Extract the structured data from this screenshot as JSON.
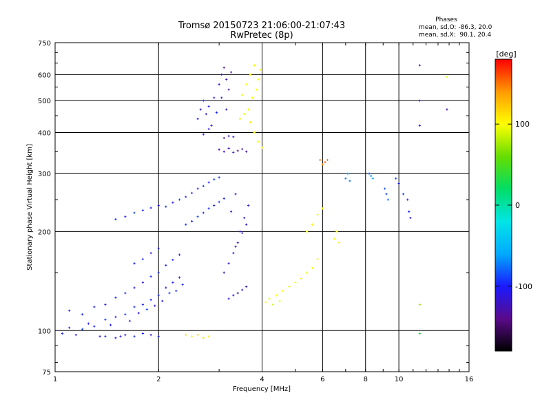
{
  "title": {
    "line1": "Tromsø 20150723 21:06:00-21:07:43",
    "line2": "RwPretec (8p)"
  },
  "phase_box": {
    "heading": "Phases",
    "line_o": "mean, sd,O: -86.3, 20.0",
    "line_x": "mean, sd,X:  90.1, 20.4"
  },
  "colorbar": {
    "label": "[deg]",
    "ticks": [
      {
        "value": 100,
        "label": "100"
      },
      {
        "value": 0,
        "label": "0"
      },
      {
        "value": -100,
        "label": "-100"
      }
    ],
    "range": [
      -180,
      180
    ],
    "colors": [
      "#000000",
      "#5a0a8a",
      "#1a1aff",
      "#00aaff",
      "#00e5e5",
      "#00dd66",
      "#66dd00",
      "#ffff00",
      "#ff9900",
      "#ff0000"
    ]
  },
  "chart_data": {
    "type": "scatter",
    "title": "Tromsø 20150723 21:06:00-21:07:43",
    "subtitle": "RwPretec (8p)",
    "xlabel": "Frequency [MHz]",
    "ylabel": "Stationary phase Virtual Height [km]",
    "x_scale": "log",
    "y_scale": "log",
    "xlim": [
      1,
      16
    ],
    "ylim": [
      75,
      750
    ],
    "grid": true,
    "x_ticks": [
      {
        "value": 1,
        "label": "1"
      },
      {
        "value": 2,
        "label": "2"
      },
      {
        "value": 4,
        "label": "4"
      },
      {
        "value": 6,
        "label": "6"
      },
      {
        "value": 8,
        "label": "8"
      },
      {
        "value": 10,
        "label": "10"
      },
      {
        "value": 16,
        "label": "16"
      }
    ],
    "y_ticks": [
      {
        "value": 75,
        "label": "75"
      },
      {
        "value": 100,
        "label": "100"
      },
      {
        "value": 200,
        "label": "200"
      },
      {
        "value": 300,
        "label": "300"
      },
      {
        "value": 400,
        "label": "400"
      },
      {
        "value": 500,
        "label": "500"
      },
      {
        "value": 600,
        "label": "600"
      },
      {
        "value": 750,
        "label": "750"
      }
    ],
    "color_variable": "phase [deg]",
    "series": [
      {
        "points": [
          [
            1.0,
            100,
            -100
          ],
          [
            1.05,
            98,
            -95
          ],
          [
            1.1,
            102,
            -110
          ],
          [
            1.15,
            97,
            -100
          ],
          [
            1.2,
            101,
            -90
          ],
          [
            1.25,
            105,
            -105
          ],
          [
            1.3,
            103,
            -100
          ],
          [
            1.35,
            96,
            -115
          ],
          [
            1.4,
            108,
            -95
          ],
          [
            1.45,
            104,
            -100
          ],
          [
            1.5,
            110,
            -105
          ],
          [
            1.55,
            96,
            -110
          ],
          [
            1.6,
            112,
            -90
          ],
          [
            1.65,
            107,
            -100
          ],
          [
            1.7,
            118,
            -95
          ],
          [
            1.75,
            113,
            -110
          ],
          [
            1.8,
            120,
            -100
          ],
          [
            1.85,
            116,
            -85
          ],
          [
            1.9,
            124,
            -100
          ],
          [
            1.95,
            119,
            -105
          ],
          [
            2.0,
            128,
            -95
          ],
          [
            2.05,
            123,
            -100
          ],
          [
            2.1,
            135,
            -110
          ],
          [
            2.15,
            130,
            -90
          ],
          [
            2.2,
            140,
            -100
          ],
          [
            2.25,
            132,
            -95
          ],
          [
            2.3,
            145,
            -105
          ],
          [
            2.35,
            138,
            -100
          ],
          [
            1.1,
            115,
            -100
          ],
          [
            1.2,
            112,
            -95
          ],
          [
            1.3,
            118,
            -100
          ],
          [
            1.4,
            120,
            -105
          ],
          [
            1.5,
            126,
            -100
          ],
          [
            1.6,
            130,
            -95
          ],
          [
            1.7,
            135,
            -100
          ],
          [
            1.8,
            140,
            -110
          ],
          [
            1.9,
            146,
            -100
          ],
          [
            2.0,
            150,
            -95
          ],
          [
            2.1,
            158,
            -100
          ],
          [
            2.2,
            164,
            -105
          ],
          [
            2.3,
            170,
            -100
          ],
          [
            1.7,
            160,
            -100
          ],
          [
            1.8,
            165,
            -95
          ],
          [
            1.9,
            172,
            -110
          ],
          [
            2.0,
            178,
            -100
          ],
          [
            1.4,
            96,
            -100
          ],
          [
            1.5,
            95,
            -105
          ],
          [
            1.6,
            97,
            -100
          ],
          [
            1.7,
            96,
            -95
          ],
          [
            1.8,
            98,
            -100
          ],
          [
            1.9,
            97,
            -110
          ],
          [
            2.0,
            96,
            -100
          ]
        ]
      },
      {
        "points": [
          [
            1.5,
            218,
            -95
          ],
          [
            1.6,
            222,
            -100
          ],
          [
            1.7,
            228,
            -90
          ],
          [
            1.8,
            232,
            -95
          ],
          [
            1.9,
            236,
            -100
          ],
          [
            2.0,
            240,
            -105
          ],
          [
            2.1,
            238,
            -95
          ],
          [
            2.2,
            245,
            -100
          ],
          [
            2.3,
            250,
            -90
          ],
          [
            2.4,
            255,
            -95
          ],
          [
            2.5,
            262,
            -100
          ],
          [
            2.6,
            270,
            -105
          ],
          [
            2.7,
            275,
            -95
          ],
          [
            2.8,
            282,
            -100
          ],
          [
            2.9,
            288,
            -90
          ],
          [
            3.0,
            292,
            -95
          ],
          [
            2.4,
            210,
            -95
          ],
          [
            2.5,
            215,
            -100
          ],
          [
            2.6,
            222,
            -90
          ],
          [
            2.7,
            228,
            -95
          ],
          [
            2.8,
            235,
            -100
          ],
          [
            2.9,
            240,
            -105
          ],
          [
            3.0,
            246,
            -95
          ],
          [
            3.1,
            252,
            -100
          ]
        ]
      },
      {
        "points": [
          [
            2.6,
            440,
            -100
          ],
          [
            2.65,
            470,
            -110
          ],
          [
            2.7,
            500,
            -95
          ],
          [
            2.75,
            455,
            -105
          ],
          [
            2.8,
            480,
            -100
          ],
          [
            2.85,
            420,
            -110
          ],
          [
            2.9,
            510,
            -100
          ],
          [
            2.95,
            460,
            -95
          ],
          [
            2.7,
            395,
            -100
          ],
          [
            2.8,
            410,
            -105
          ],
          [
            3.0,
            560,
            -120
          ],
          [
            3.05,
            600,
            -125
          ],
          [
            3.1,
            630,
            -130
          ],
          [
            3.15,
            580,
            -120
          ],
          [
            3.2,
            540,
            -125
          ],
          [
            3.25,
            610,
            -130
          ],
          [
            3.05,
            510,
            -120
          ],
          [
            3.15,
            470,
            -115
          ],
          [
            3.0,
            355,
            -130
          ],
          [
            3.1,
            350,
            -125
          ],
          [
            3.2,
            358,
            -120
          ],
          [
            3.3,
            348,
            -125
          ],
          [
            3.4,
            352,
            -130
          ],
          [
            3.5,
            356,
            -120
          ],
          [
            3.6,
            350,
            -125
          ],
          [
            3.1,
            385,
            -130
          ],
          [
            3.2,
            390,
            -125
          ],
          [
            3.3,
            388,
            -120
          ]
        ]
      },
      {
        "points": [
          [
            3.2,
            125,
            -110
          ],
          [
            3.3,
            128,
            -115
          ],
          [
            3.4,
            130,
            -120
          ],
          [
            3.5,
            133,
            -110
          ],
          [
            3.6,
            136,
            -115
          ],
          [
            3.1,
            150,
            -120
          ],
          [
            3.2,
            160,
            -115
          ],
          [
            3.3,
            172,
            -110
          ],
          [
            3.4,
            185,
            -120
          ],
          [
            3.5,
            198,
            -115
          ],
          [
            3.6,
            210,
            -110
          ],
          [
            3.35,
            180,
            -125
          ],
          [
            3.45,
            200,
            -120
          ],
          [
            3.55,
            220,
            -115
          ],
          [
            3.65,
            240,
            -110
          ],
          [
            3.25,
            230,
            -125
          ],
          [
            3.35,
            260,
            -120
          ]
        ]
      },
      {
        "points": [
          [
            3.5,
            520,
            95
          ],
          [
            3.6,
            560,
            100
          ],
          [
            3.7,
            600,
            105
          ],
          [
            3.8,
            640,
            95
          ],
          [
            3.9,
            580,
            100
          ],
          [
            3.65,
            470,
            105
          ],
          [
            3.75,
            510,
            95
          ],
          [
            3.85,
            540,
            100
          ],
          [
            3.95,
            620,
            105
          ],
          [
            3.7,
            430,
            110
          ],
          [
            3.8,
            400,
            100
          ],
          [
            3.9,
            375,
            95
          ],
          [
            4.0,
            360,
            100
          ],
          [
            3.55,
            455,
            90
          ],
          [
            3.45,
            440,
            110
          ],
          [
            4.2,
            125,
            95
          ],
          [
            4.4,
            128,
            100
          ],
          [
            4.6,
            132,
            105
          ],
          [
            4.8,
            136,
            95
          ],
          [
            5.0,
            140,
            100
          ],
          [
            5.2,
            144,
            105
          ],
          [
            5.4,
            150,
            95
          ],
          [
            5.6,
            155,
            100
          ],
          [
            5.8,
            165,
            105
          ],
          [
            4.3,
            120,
            90
          ],
          [
            4.5,
            123,
            95
          ],
          [
            4.1,
            122,
            100
          ],
          [
            5.4,
            200,
            100
          ],
          [
            5.6,
            210,
            105
          ],
          [
            5.8,
            225,
            95
          ],
          [
            6.0,
            235,
            100
          ],
          [
            6.5,
            190,
            95
          ],
          [
            6.6,
            200,
            100
          ],
          [
            6.7,
            185,
            105
          ],
          [
            2.4,
            97,
            110
          ],
          [
            2.5,
            96,
            105
          ],
          [
            2.6,
            97,
            115
          ],
          [
            2.7,
            95,
            110
          ],
          [
            2.8,
            96,
            105
          ]
        ]
      },
      {
        "points": [
          [
            5.9,
            330,
            150
          ],
          [
            6.0,
            320,
            145
          ],
          [
            6.1,
            325,
            155
          ],
          [
            6.2,
            330,
            150
          ],
          [
            7.0,
            290,
            -70
          ],
          [
            7.1,
            300,
            -60
          ],
          [
            7.2,
            285,
            -75
          ],
          [
            8.2,
            300,
            -80
          ],
          [
            8.3,
            295,
            -70
          ],
          [
            8.4,
            290,
            -60
          ],
          [
            9.1,
            270,
            -85
          ],
          [
            9.2,
            260,
            -90
          ],
          [
            9.3,
            250,
            -80
          ],
          [
            9.8,
            290,
            -90
          ],
          [
            10.0,
            280,
            -100
          ],
          [
            10.3,
            260,
            -95
          ],
          [
            10.6,
            250,
            -110
          ],
          [
            10.7,
            230,
            -100
          ],
          [
            10.8,
            220,
            -105
          ],
          [
            11.5,
            640,
            -130
          ],
          [
            11.5,
            500,
            -120
          ],
          [
            11.5,
            420,
            -110
          ],
          [
            11.5,
            120,
            75
          ],
          [
            11.5,
            98,
            40
          ],
          [
            13.8,
            470,
            -130
          ],
          [
            13.8,
            590,
            95
          ]
        ]
      }
    ]
  }
}
